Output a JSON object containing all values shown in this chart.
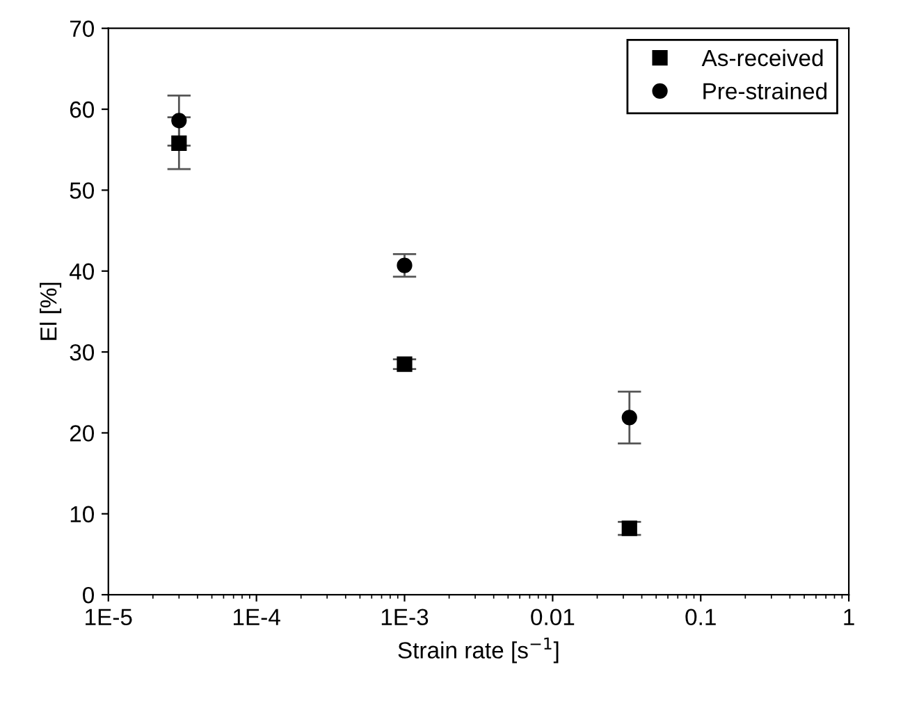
{
  "chart_data": {
    "type": "scatter",
    "xlabel": "Strain rate [s$^{−1}$]",
    "ylabel": "El [%]",
    "log": "x",
    "xlim": [
      1e-05,
      1
    ],
    "xticks": [
      {
        "value": 1e-05,
        "label": "1E-5"
      },
      {
        "value": 0.0001,
        "label": "1E-4"
      },
      {
        "value": 0.001,
        "label": "1E-3"
      },
      0.01,
      0.1,
      1
    ],
    "ylim": [
      0,
      70
    ],
    "yticks": [
      0,
      10,
      20,
      30,
      40,
      50,
      60,
      70
    ],
    "grid": false,
    "legend": "top right",
    "x": [
      3e-05,
      0.001,
      0.033
    ],
    "series": [
      {
        "name": "As-received",
        "color": "#000000",
        "marker": "square",
        "values": [
          55.8,
          28.5,
          8.2
        ],
        "errors": [
          3.2,
          0.6,
          0.8
        ]
      },
      {
        "name": "Pre-strained",
        "color": "#000000",
        "marker": "circle",
        "values": [
          58.6,
          40.7,
          21.9
        ],
        "errors": [
          3.1,
          1.4,
          3.2
        ]
      }
    ]
  }
}
